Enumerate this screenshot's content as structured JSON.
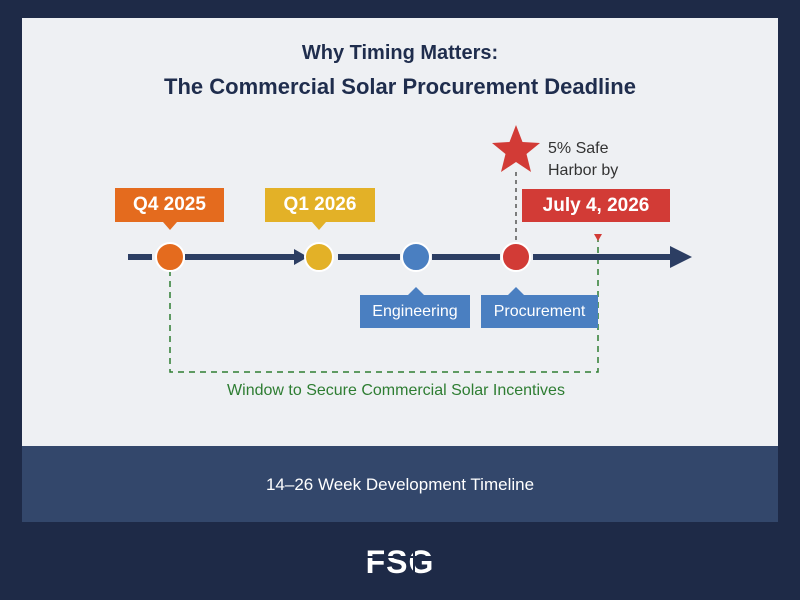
{
  "title": {
    "line1": "Why Timing Matters:",
    "line2": "The Commercial Solar Procurement Deadline"
  },
  "milestones": [
    {
      "label": "Q4 2025",
      "color": "#e46b1e"
    },
    {
      "label": "Q1 2026",
      "color": "#e3b127"
    },
    {
      "label": "Engineering",
      "color": "#4a7fc1"
    },
    {
      "label": "Procurement",
      "color": "#4a7fc1"
    }
  ],
  "deadline": {
    "note_line1": "5% Safe",
    "note_line2": "Harbor by",
    "date_label": "July 4, 2026",
    "color": "#d23b36"
  },
  "window_label": "Window to Secure Commercial Solar Incentives",
  "footer": "14–26 Week Development Timeline",
  "logo_text": "FSG",
  "colors": {
    "background": "#1e2a47",
    "card": "#eef0f3",
    "timeline": "#2c3e63",
    "window_border": "#2e7d32",
    "footer_band": "#33476b"
  }
}
